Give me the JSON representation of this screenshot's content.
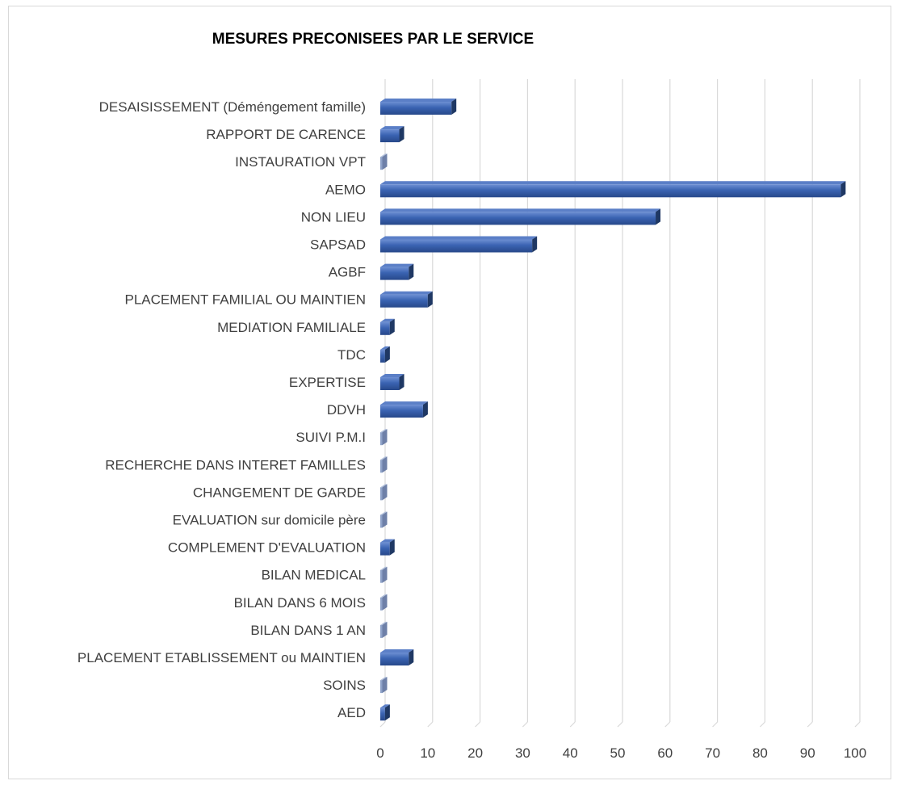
{
  "chart_data": {
    "type": "bar",
    "orientation": "horizontal",
    "title": "MESURES PRECONISEES PAR LE SERVICE",
    "categories": [
      "DESAISISSEMENT (Déméngement famille)",
      "RAPPORT DE CARENCE",
      "INSTAURATION VPT",
      "AEMO",
      "NON LIEU",
      "SAPSAD",
      "AGBF",
      "PLACEMENT FAMILIAL OU MAINTIEN",
      "MEDIATION FAMILIALE",
      "TDC",
      "EXPERTISE",
      "DDVH",
      "SUIVI  P.M.I",
      "RECHERCHE DANS INTERET FAMILLES",
      "CHANGEMENT DE GARDE",
      "EVALUATION sur domicile père",
      "COMPLEMENT D'EVALUATION",
      "BILAN MEDICAL",
      "BILAN DANS 6 MOIS",
      "BILAN DANS 1 AN",
      "PLACEMENT ETABLISSEMENT ou MAINTIEN",
      "SOINS",
      "AED"
    ],
    "values": [
      15,
      4,
      0,
      97,
      58,
      32,
      6,
      10,
      2,
      1,
      4,
      9,
      0,
      0,
      0,
      0,
      2,
      0,
      0,
      0,
      6,
      0,
      1
    ],
    "xlim": [
      0,
      100
    ],
    "xticks": [
      "0",
      "10",
      "20",
      "30",
      "40",
      "50",
      "60",
      "70",
      "80",
      "90",
      "100"
    ],
    "grid": true,
    "legend": "none",
    "colors": {
      "bar_front": "#2f5597",
      "bar_top": "#5b7fc7",
      "bar_side": "#1f3864",
      "grid": "#d9d9d9",
      "text": "#404040"
    }
  }
}
